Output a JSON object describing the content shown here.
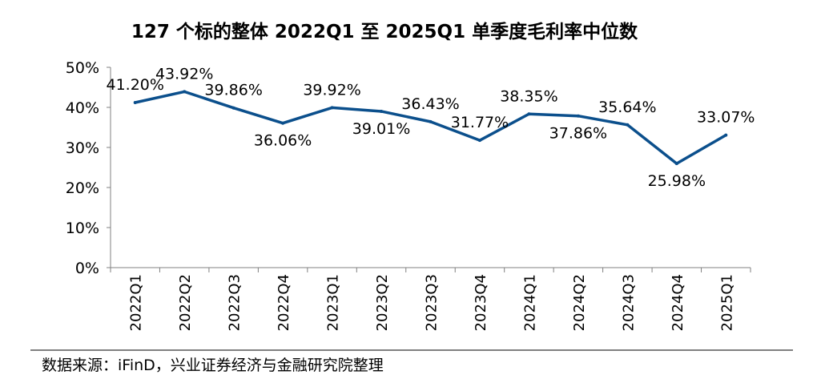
{
  "chart_data": {
    "type": "line",
    "title": "127 个标的整体 2022Q1 至 2025Q1 单季度毛利率中位数",
    "xlabel": "",
    "ylabel": "",
    "categories": [
      "2022Q1",
      "2022Q2",
      "2022Q3",
      "2022Q4",
      "2023Q1",
      "2023Q2",
      "2023Q3",
      "2023Q4",
      "2024Q1",
      "2024Q2",
      "2024Q3",
      "2024Q4",
      "2025Q1"
    ],
    "series": [
      {
        "values": [
          41.2,
          43.92,
          39.86,
          36.06,
          39.92,
          39.01,
          36.43,
          31.77,
          38.35,
          37.86,
          35.64,
          25.98,
          33.07
        ],
        "labels": [
          "41.20%",
          "43.92%",
          "39.86%",
          "36.06%",
          "39.92%",
          "39.01%",
          "36.43%",
          "31.77%",
          "38.35%",
          "37.86%",
          "35.64%",
          "25.98%",
          "33.07%"
        ],
        "color": "#0b4f8c"
      }
    ],
    "ylim": [
      0,
      50
    ],
    "yticks": [
      0,
      10,
      20,
      30,
      40,
      50
    ],
    "ytick_labels": [
      "0%",
      "10%",
      "20%",
      "30%",
      "40%",
      "50%"
    ],
    "label_positions": [
      "above",
      "above",
      "above",
      "below",
      "above",
      "below",
      "above",
      "above",
      "above",
      "below",
      "above",
      "below",
      "above"
    ],
    "grid": false,
    "legend": "none"
  },
  "source": "数据来源：iFinD，兴业证券经济与金融研究院整理",
  "colors": {
    "line": "#0b4f8c",
    "axis": "#808080",
    "text": "#000000"
  }
}
